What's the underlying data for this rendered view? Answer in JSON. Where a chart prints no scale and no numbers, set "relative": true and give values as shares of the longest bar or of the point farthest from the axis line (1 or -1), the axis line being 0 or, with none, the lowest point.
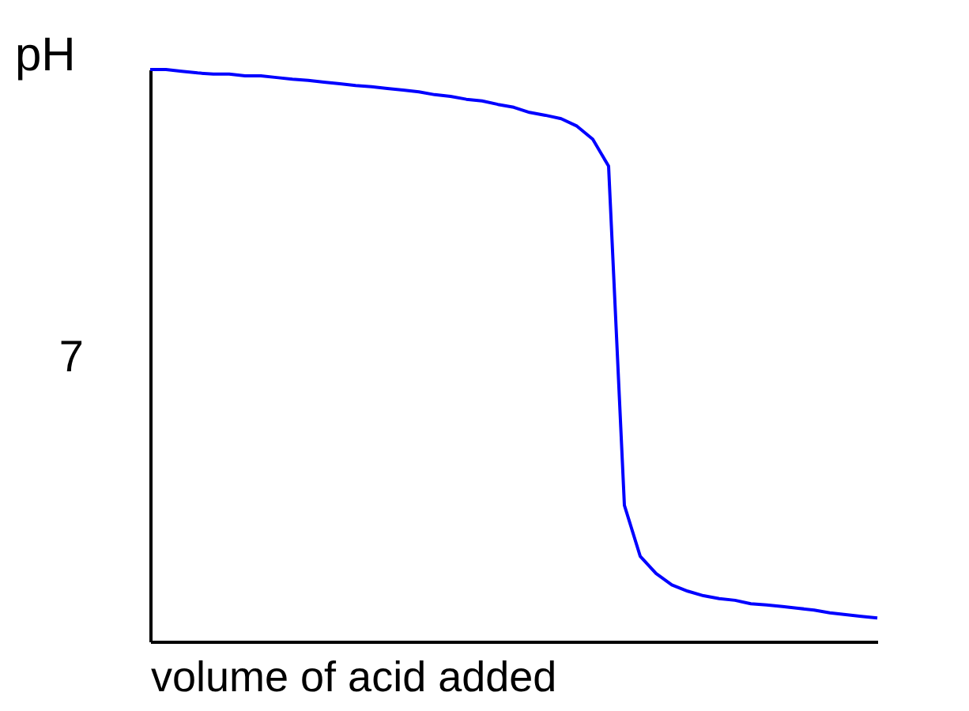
{
  "chart_data": {
    "type": "line",
    "ylabel": "pH",
    "xlabel": "volume of acid added",
    "relative": true,
    "grid": false,
    "legend": false,
    "annotations": [
      "7"
    ],
    "categories": [
      null,
      null,
      null,
      null,
      null,
      null,
      null,
      null,
      null,
      null,
      null,
      null,
      null,
      null,
      null,
      null,
      null,
      null,
      null,
      null,
      null,
      null,
      null,
      null,
      null,
      null,
      null,
      null,
      null,
      null,
      null,
      null,
      null,
      null,
      null,
      null,
      null,
      null,
      null,
      null,
      null,
      null,
      null,
      null,
      null,
      null,
      null
    ],
    "series": [
      {
        "color": "#0000ff",
        "values": [
          1.0,
          1.0,
          0.997,
          0.994,
          0.992,
          0.992,
          0.989,
          0.989,
          0.986,
          0.983,
          0.981,
          0.978,
          0.975,
          0.972,
          0.97,
          0.967,
          0.964,
          0.961,
          0.956,
          0.953,
          0.948,
          0.945,
          0.939,
          0.934,
          0.925,
          0.92,
          0.914,
          0.901,
          0.878,
          0.831,
          0.238,
          0.149,
          0.119,
          0.099,
          0.088,
          0.08,
          0.075,
          0.072,
          0.066,
          0.064,
          0.061,
          0.058,
          0.055,
          0.05,
          0.047,
          0.044,
          0.041
        ]
      }
    ]
  }
}
